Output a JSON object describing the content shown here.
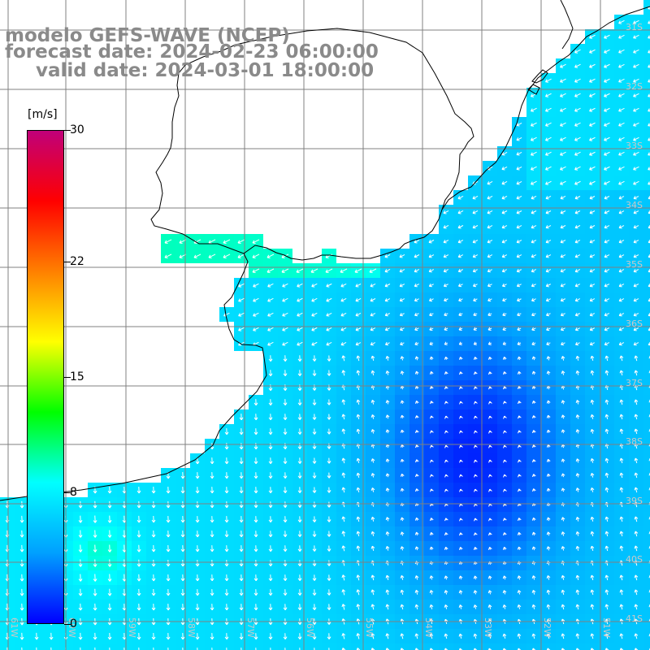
{
  "title": {
    "model": "modelo GEFS-WAVE (NCEP)",
    "forecast": "forecast date: 2024-02-23 06:00:00",
    "valid": "valid date: 2024-03-01 18:00:00"
  },
  "colorbar": {
    "units": "[m/s]",
    "ticks": [
      "30",
      "22",
      "15",
      "8",
      "0"
    ],
    "tick_values": [
      30,
      22,
      15,
      8,
      0
    ],
    "min": 0,
    "max": 30,
    "colors": [
      "#0000ff",
      "#00a0ff",
      "#00ffff",
      "#00ff00",
      "#ffff00",
      "#ff8000",
      "#ff0000",
      "#c0007a"
    ]
  },
  "map": {
    "land_color": "#ffffff",
    "grid_color": "#808080",
    "coast_color": "#000000",
    "lat_labels": [
      "31S",
      "32S",
      "33S",
      "34S",
      "35S",
      "36S",
      "37S",
      "38S",
      "39S",
      "40S",
      "41S"
    ],
    "lon_labels": [
      "61W",
      "60W",
      "59W",
      "58W",
      "57W",
      "56W",
      "55W",
      "54W",
      "53W",
      "52W",
      "51W"
    ]
  }
}
